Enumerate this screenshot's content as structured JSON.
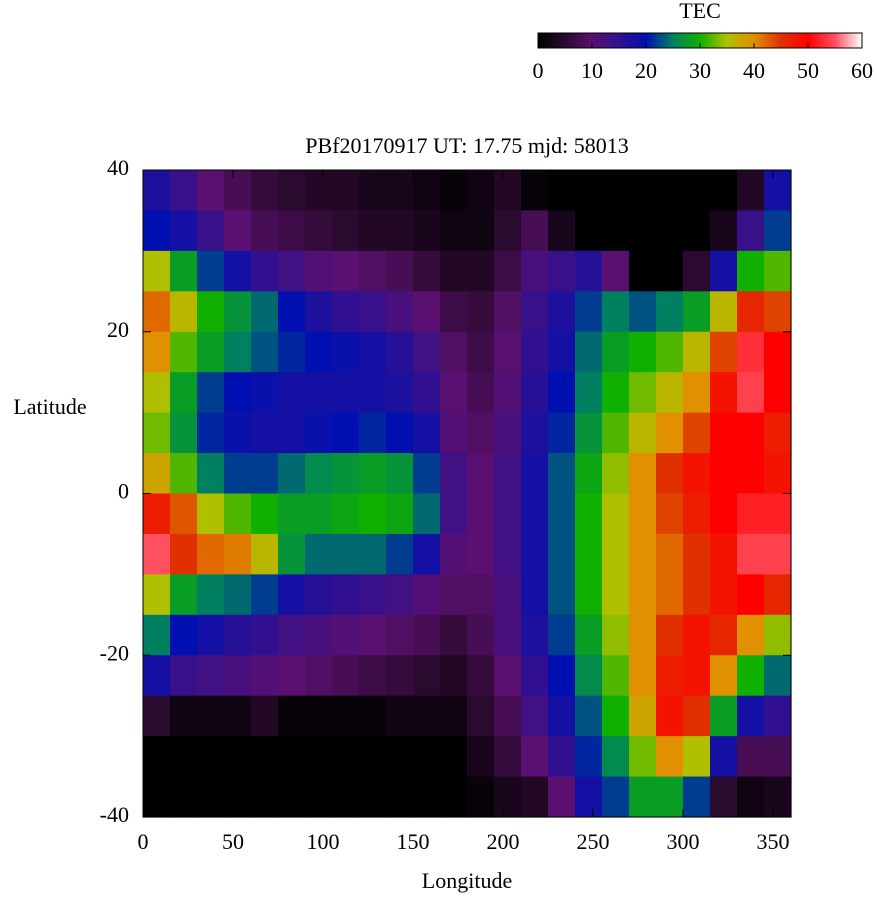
{
  "chart_data": {
    "type": "heatmap",
    "title": "PBf20170917  UT: 17.75  mjd: 58013",
    "xlabel": "Longitude",
    "ylabel": "Latitude",
    "zlabel": "TEC",
    "xlim": [
      0,
      360
    ],
    "xticks": [
      0,
      50,
      100,
      150,
      200,
      250,
      300,
      350
    ],
    "ylim": [
      -40,
      40
    ],
    "yticks": [
      -40,
      -20,
      0,
      20,
      40
    ],
    "zlim": [
      0,
      60
    ],
    "zticks": [
      0,
      10,
      20,
      30,
      40,
      50,
      60
    ],
    "colorscale": [
      "#000000",
      "#2a0a2e",
      "#5a1070",
      "#301090",
      "#0010b0",
      "#008060",
      "#10b000",
      "#b0c000",
      "#e09000",
      "#e03000",
      "#ff0000",
      "#ff5060",
      "#ffffff"
    ],
    "x": [
      7.5,
      22.5,
      37.5,
      52.5,
      67.5,
      82.5,
      97.5,
      112.5,
      127.5,
      142.5,
      157.5,
      172.5,
      187.5,
      202.5,
      217.5,
      232.5,
      247.5,
      262.5,
      277.5,
      292.5,
      307.5,
      322.5,
      337.5,
      352.5
    ],
    "y": [
      37.5,
      32.5,
      27.5,
      22.5,
      17.5,
      12.5,
      7.5,
      2.5,
      -2.5,
      -7.5,
      -12.5,
      -17.5,
      -22.5,
      -27.5,
      -32.5,
      -37.5
    ],
    "z": [
      [
        17,
        14,
        10,
        8,
        6,
        5,
        4,
        4,
        3,
        3,
        2,
        1,
        2,
        4,
        1,
        0,
        0,
        0,
        0,
        0,
        0,
        0,
        4,
        18
      ],
      [
        20,
        18,
        14,
        10,
        8,
        7,
        6,
        5,
        4,
        4,
        3,
        2,
        2,
        5,
        8,
        3,
        0,
        0,
        0,
        0,
        0,
        3,
        14,
        22
      ],
      [
        35,
        28,
        22,
        18,
        15,
        13,
        11,
        10,
        9,
        8,
        6,
        4,
        4,
        7,
        12,
        14,
        16,
        10,
        0,
        0,
        5,
        18,
        30,
        32
      ],
      [
        42,
        36,
        30,
        27,
        24,
        20,
        17,
        15,
        14,
        12,
        10,
        7,
        6,
        9,
        14,
        17,
        22,
        25,
        23,
        25,
        28,
        36,
        46,
        44
      ],
      [
        40,
        32,
        28,
        25,
        23,
        21,
        20,
        19,
        18,
        16,
        13,
        9,
        7,
        10,
        15,
        18,
        24,
        28,
        30,
        32,
        36,
        44,
        53,
        50
      ],
      [
        35,
        28,
        22,
        20,
        19,
        18,
        18,
        18,
        18,
        17,
        15,
        10,
        8,
        11,
        16,
        20,
        25,
        30,
        33,
        36,
        40,
        48,
        54,
        50
      ],
      [
        33,
        27,
        21,
        19,
        18,
        18,
        19,
        20,
        21,
        20,
        18,
        11,
        9,
        12,
        17,
        21,
        27,
        32,
        36,
        40,
        44,
        50,
        50,
        47
      ],
      [
        38,
        32,
        25,
        22,
        22,
        24,
        26,
        27,
        28,
        27,
        22,
        13,
        10,
        13,
        18,
        23,
        29,
        34,
        40,
        45,
        48,
        50,
        50,
        48
      ],
      [
        47,
        43,
        35,
        32,
        30,
        28,
        28,
        29,
        30,
        29,
        24,
        13,
        10,
        13,
        18,
        23,
        30,
        35,
        40,
        44,
        47,
        50,
        52,
        52
      ],
      [
        55,
        45,
        42,
        41,
        36,
        27,
        24,
        24,
        24,
        22,
        18,
        11,
        10,
        13,
        18,
        23,
        30,
        35,
        40,
        42,
        45,
        48,
        54,
        54
      ],
      [
        35,
        28,
        25,
        24,
        22,
        18,
        16,
        15,
        14,
        13,
        11,
        9,
        9,
        12,
        18,
        23,
        30,
        35,
        40,
        42,
        45,
        48,
        50,
        46
      ],
      [
        25,
        20,
        18,
        16,
        15,
        13,
        12,
        11,
        10,
        9,
        8,
        6,
        8,
        12,
        17,
        22,
        28,
        34,
        40,
        45,
        48,
        46,
        40,
        34
      ],
      [
        18,
        14,
        13,
        12,
        11,
        10,
        9,
        8,
        7,
        6,
        5,
        4,
        6,
        10,
        15,
        20,
        26,
        32,
        40,
        47,
        48,
        40,
        30,
        24
      ],
      [
        5,
        2,
        2,
        2,
        4,
        1,
        1,
        1,
        1,
        2,
        2,
        2,
        5,
        8,
        13,
        18,
        23,
        30,
        38,
        48,
        45,
        28,
        18,
        15
      ],
      [
        0,
        0,
        0,
        0,
        0,
        0,
        0,
        0,
        0,
        0,
        0,
        0,
        3,
        6,
        10,
        15,
        21,
        26,
        33,
        40,
        35,
        18,
        8,
        8
      ],
      [
        0,
        0,
        0,
        0,
        0,
        0,
        0,
        0,
        0,
        0,
        0,
        0,
        1,
        3,
        4,
        10,
        18,
        22,
        28,
        28,
        22,
        5,
        2,
        3
      ]
    ]
  }
}
